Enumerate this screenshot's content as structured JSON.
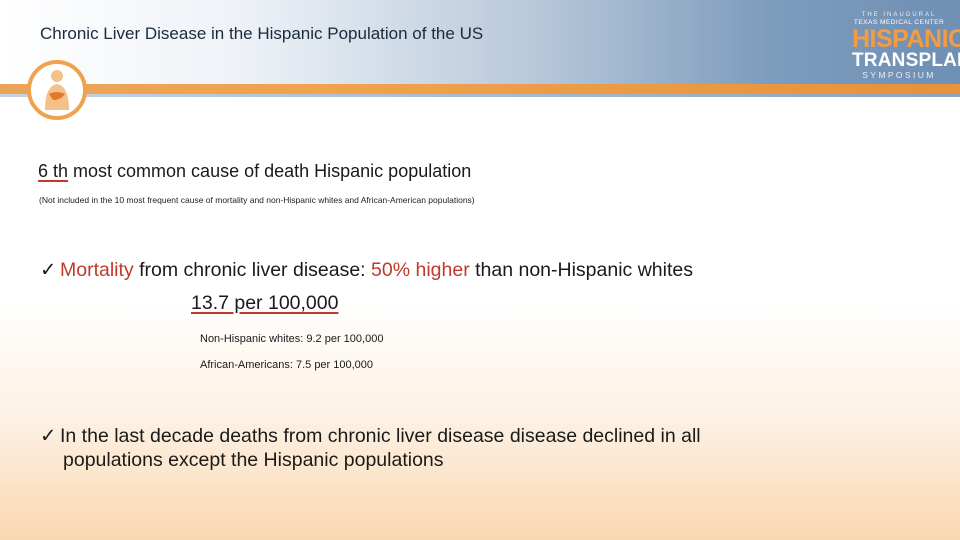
{
  "header": {
    "title": "Chronic Liver Disease in the Hispanic Population of the US"
  },
  "brand": {
    "line1": "THE INAUGURAL",
    "line2": "TEXAS MEDICAL CENTER",
    "line3": "HISPANIC",
    "line4": "TRANSPLANT",
    "line5": "SYMPOSIUM"
  },
  "content": {
    "rank_value": "6 th",
    "rank_text": " most common cause of death Hispanic population",
    "note": "(Not included in the 10 most frequent cause of mortality and non-Hispanic whites and African-American populations)",
    "check1": {
      "mark": "ü",
      "mortality": "Mortality",
      "text1": " from chronic liver disease: ",
      "percent": "50% higher",
      "text2": " than non-Hispanic whites",
      "rate": "13.7 per 100,000",
      "sub1": "Non-Hispanic whites: 9.2 per 100,000",
      "sub2": "African-Americans: 7.5 per 100,000"
    },
    "check2": {
      "mark": "ü",
      "line1": "In the last decade deaths from chronic liver disease disease declined in all",
      "line2": "populations except the Hispanic populations"
    }
  },
  "colors": {
    "accent_red": "#c0392b",
    "brand_orange": "#f39c43",
    "header_blue": "#6f8fb3"
  }
}
